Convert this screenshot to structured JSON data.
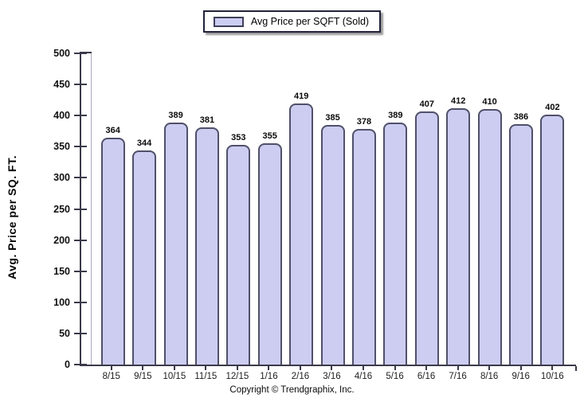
{
  "legend": {
    "label": "Avg Price per SQFT (Sold)"
  },
  "chart_data": {
    "type": "bar",
    "title": "",
    "categories": [
      "8/15",
      "9/15",
      "10/15",
      "11/15",
      "12/15",
      "1/16",
      "2/16",
      "3/16",
      "4/16",
      "5/16",
      "6/16",
      "7/16",
      "8/16",
      "9/16",
      "10/16"
    ],
    "values": [
      364,
      344,
      389,
      381,
      353,
      355,
      419,
      385,
      378,
      389,
      407,
      412,
      410,
      386,
      402
    ],
    "xlabel": "",
    "ylabel": "Avg. Price per SQ. FT.",
    "ylim": [
      0,
      500
    ],
    "ytick_step": 50,
    "grid": false,
    "legend_entries": [
      "Avg Price per SQFT (Sold)"
    ],
    "legend_position": "top-center",
    "bar_fill_color": "#cdcdf2",
    "bar_border_color": "#50506a",
    "axis_color": "#3a3a4a",
    "value_labels_shown": true
  },
  "footer": {
    "copyright": "Copyright © Trendgraphix, Inc."
  }
}
